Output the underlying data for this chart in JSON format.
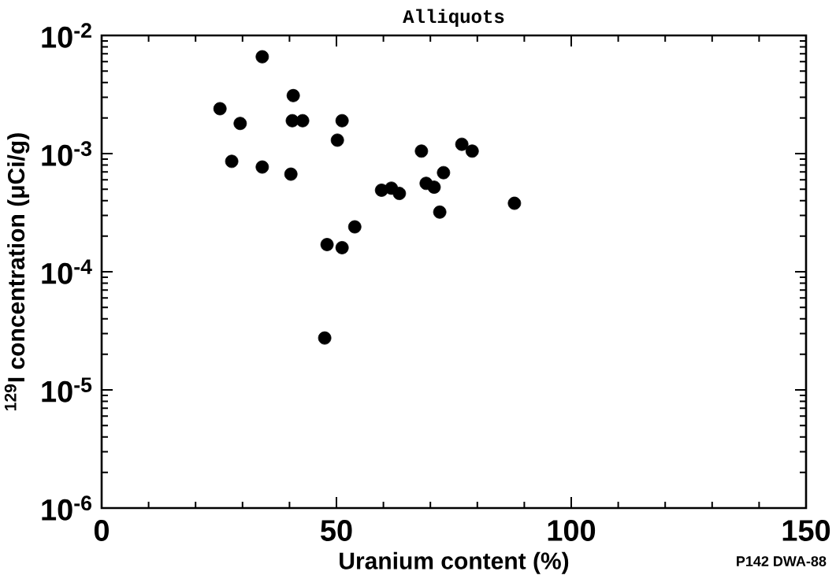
{
  "chart_data": {
    "type": "scatter",
    "title": "Alliquots",
    "xlabel": "Uranium content (%)",
    "ylabel": "$^{129}$I concentration (μCi/g)",
    "x": [
      25.2,
      27.7,
      29.5,
      34.2,
      34.2,
      40.3,
      40.8,
      40.6,
      42.8,
      50.2,
      51.2,
      48.0,
      51.2,
      53.9,
      47.5,
      59.6,
      61.7,
      63.4,
      68.1,
      69.1,
      70.8,
      72.0,
      72.8,
      76.7,
      78.9,
      87.9
    ],
    "values": [
      0.0024,
      0.00086,
      0.0018,
      0.0066,
      0.00077,
      0.00067,
      0.0031,
      0.0019,
      0.0019,
      0.0013,
      0.0019,
      0.00017,
      0.00016,
      0.00024,
      2.75e-05,
      0.00049,
      0.00051,
      0.00046,
      0.00105,
      0.00056,
      0.00052,
      0.00032,
      0.00069,
      0.0012,
      0.00105,
      0.00038
    ],
    "color": "#000000",
    "marker": "circle",
    "log": "y",
    "xlim": [
      0,
      150
    ],
    "xticks": [
      0,
      50,
      100,
      150
    ],
    "ylim": [
      1e-06,
      0.01
    ],
    "yticks": [
      {
        "value": 1e-06,
        "label": "10$^{-6}$"
      },
      {
        "value": 1e-05,
        "label": "10$^{-5}$"
      },
      {
        "value": 0.0001,
        "label": "10$^{-4}$"
      },
      {
        "value": 0.001,
        "label": "10$^{-3}$"
      },
      {
        "value": 0.01,
        "label": "10$^{-2}$"
      }
    ],
    "grid": false,
    "annotations": [
      "P142 DWA-88"
    ]
  }
}
